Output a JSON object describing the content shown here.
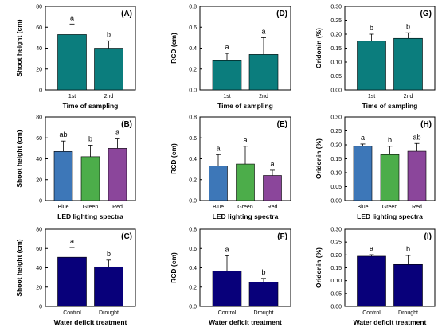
{
  "colors": {
    "teal": "#0b7d7d",
    "blue": "#3d77b8",
    "green": "#4cad4a",
    "purple": "#8b469b",
    "navy": "#08007a"
  },
  "chart_data": [
    {
      "panel": "(A)",
      "type": "bar",
      "ylabel": "Shoot height (cm)",
      "xlabel": "Time of sampling",
      "ylim": [
        0,
        80
      ],
      "yticks": [
        "0",
        "20",
        "40",
        "60",
        "80"
      ],
      "categories": [
        "1st",
        "2nd"
      ],
      "values": [
        53,
        40
      ],
      "errors": [
        10,
        7
      ],
      "letters": [
        "a",
        "b"
      ],
      "colors": [
        "teal",
        "teal"
      ]
    },
    {
      "panel": "(D)",
      "type": "bar",
      "ylabel": "RCD (cm)",
      "xlabel": "Time of sampling",
      "ylim": [
        0,
        0.8
      ],
      "yticks": [
        "0.0",
        "0.2",
        "0.4",
        "0.6",
        "0.8"
      ],
      "categories": [
        "1st",
        "2nd"
      ],
      "values": [
        0.28,
        0.34
      ],
      "errors": [
        0.07,
        0.16
      ],
      "letters": [
        "a",
        "a"
      ],
      "colors": [
        "teal",
        "teal"
      ]
    },
    {
      "panel": "(G)",
      "type": "bar",
      "ylabel": "Oridonin (%)",
      "xlabel": "Time of sampling",
      "ylim": [
        0,
        0.3
      ],
      "yticks": [
        "0.00",
        "0.05",
        "0.10",
        "0.15",
        "0.20",
        "0.25",
        "0.30"
      ],
      "categories": [
        "1st",
        "2nd"
      ],
      "values": [
        0.175,
        0.185
      ],
      "errors": [
        0.025,
        0.02
      ],
      "letters": [
        "b",
        "b"
      ],
      "colors": [
        "teal",
        "teal"
      ]
    },
    {
      "panel": "(B)",
      "type": "bar",
      "ylabel": "Shoot height (cm)",
      "xlabel": "LED lighting spectra",
      "ylim": [
        0,
        80
      ],
      "yticks": [
        "0",
        "20",
        "40",
        "60",
        "80"
      ],
      "categories": [
        "Blue",
        "Green",
        "Red"
      ],
      "values": [
        47,
        42,
        50
      ],
      "errors": [
        10,
        11,
        9
      ],
      "letters": [
        "ab",
        "b",
        "a"
      ],
      "colors": [
        "blue",
        "green",
        "purple"
      ]
    },
    {
      "panel": "(E)",
      "type": "bar",
      "ylabel": "RCD (cm)",
      "xlabel": "LED lighting spectra",
      "ylim": [
        0,
        0.8
      ],
      "yticks": [
        "0.0",
        "0.2",
        "0.4",
        "0.6",
        "0.8"
      ],
      "categories": [
        "Blue",
        "Green",
        "Red"
      ],
      "values": [
        0.33,
        0.35,
        0.24
      ],
      "errors": [
        0.11,
        0.17,
        0.05
      ],
      "letters": [
        "a",
        "a",
        "a"
      ],
      "colors": [
        "blue",
        "green",
        "purple"
      ]
    },
    {
      "panel": "(H)",
      "type": "bar",
      "ylabel": "Oridonin (%)",
      "xlabel": "LED lighting spectra",
      "ylim": [
        0,
        0.3
      ],
      "yticks": [
        "0.00",
        "0.05",
        "0.10",
        "0.15",
        "0.20",
        "0.25",
        "0.30"
      ],
      "categories": [
        "Blue",
        "Green",
        "Red"
      ],
      "values": [
        0.195,
        0.165,
        0.177
      ],
      "errors": [
        0.008,
        0.03,
        0.028
      ],
      "letters": [
        "a",
        "b",
        "ab"
      ],
      "colors": [
        "blue",
        "green",
        "purple"
      ]
    },
    {
      "panel": "(C)",
      "type": "bar",
      "ylabel": "Shoot height (cm)",
      "xlabel": "Water deficit treatment",
      "ylim": [
        0,
        80
      ],
      "yticks": [
        "0",
        "20",
        "40",
        "60",
        "80"
      ],
      "categories": [
        "Control",
        "Drought"
      ],
      "values": [
        51,
        41
      ],
      "errors": [
        10,
        7
      ],
      "letters": [
        "a",
        "b"
      ],
      "colors": [
        "navy",
        "navy"
      ]
    },
    {
      "panel": "(F)",
      "type": "bar",
      "ylabel": "RCD (cm)",
      "xlabel": "Water deficit treatment",
      "ylim": [
        0,
        0.8
      ],
      "yticks": [
        "0.0",
        "0.2",
        "0.4",
        "0.6",
        "0.8"
      ],
      "categories": [
        "Control",
        "Drought"
      ],
      "values": [
        0.365,
        0.25
      ],
      "errors": [
        0.16,
        0.04
      ],
      "letters": [
        "a",
        "b"
      ],
      "colors": [
        "navy",
        "navy"
      ]
    },
    {
      "panel": "(I)",
      "type": "bar",
      "ylabel": "Oridonin (%)",
      "xlabel": "Water deficit treatment",
      "ylim": [
        0,
        0.3
      ],
      "yticks": [
        "0.00",
        "0.05",
        "0.10",
        "0.15",
        "0.20",
        "0.25",
        "0.30"
      ],
      "categories": [
        "Control",
        "Drought"
      ],
      "values": [
        0.195,
        0.163
      ],
      "errors": [
        0.006,
        0.035
      ],
      "letters": [
        "a",
        "b"
      ],
      "colors": [
        "navy",
        "navy"
      ]
    }
  ]
}
